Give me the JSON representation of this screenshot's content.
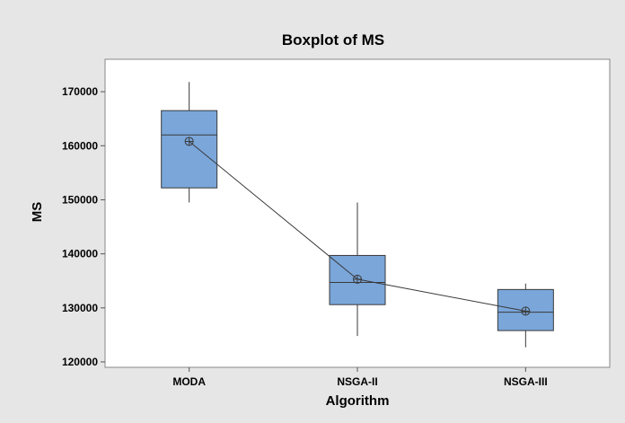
{
  "colors": {
    "background": "#e6e6e6",
    "plot_area": "#ffffff",
    "box_fill": "#7aa6da",
    "box_stroke": "#3d5f8a",
    "line": "#3a3a3a",
    "text": "#000000"
  },
  "chart_data": {
    "type": "box",
    "title": "Boxplot of MS",
    "xlabel": "Algorithm",
    "ylabel": "MS",
    "ylim": [
      119000,
      176000
    ],
    "yticks": [
      120000,
      130000,
      140000,
      150000,
      160000,
      170000
    ],
    "ytick_labels": [
      "120000",
      "130000",
      "140000",
      "150000",
      "160000",
      "170000"
    ],
    "grid": false,
    "legend": "none",
    "mean_connect_line": true,
    "categories": [
      "MODA",
      "NSGA-II",
      "NSGA-III"
    ],
    "boxes": [
      {
        "category": "MODA",
        "whisker_low": 149500,
        "q1": 152200,
        "median": 162000,
        "q3": 166500,
        "whisker_high": 171800,
        "mean": 160800
      },
      {
        "category": "NSGA-II",
        "whisker_low": 124800,
        "q1": 130600,
        "median": 134700,
        "q3": 139700,
        "whisker_high": 149500,
        "mean": 135300
      },
      {
        "category": "NSGA-III",
        "whisker_low": 122700,
        "q1": 125800,
        "median": 129200,
        "q3": 133400,
        "whisker_high": 134500,
        "mean": 129400
      }
    ]
  }
}
